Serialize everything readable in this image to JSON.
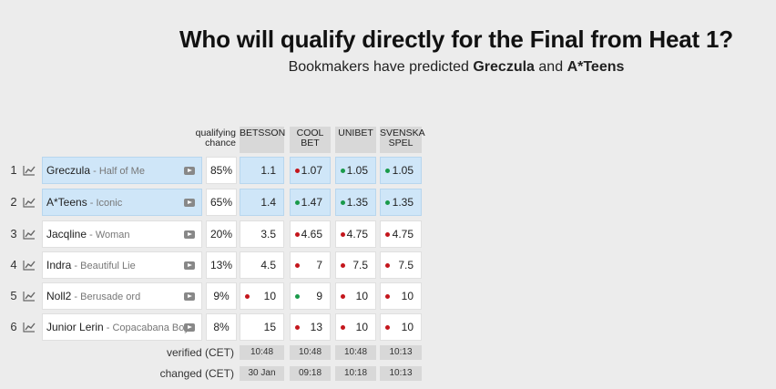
{
  "header": {
    "title": "Who will qualify directly for the Final from Heat 1?",
    "subtitle_prefix": "Bookmakers have predicted",
    "subtitle_name1": "Greczula",
    "subtitle_and": "and",
    "subtitle_name2": "A*Teens"
  },
  "columns": {
    "qualifying_line1": "qualifying",
    "qualifying_line2": "chance",
    "bookmakers": [
      {
        "line1": "BETSSON",
        "line2": ""
      },
      {
        "line1": "COOL",
        "line2": "BET"
      },
      {
        "line1": "UNIBET",
        "line2": ""
      },
      {
        "line1": "SVENSKA",
        "line2": "SPEL"
      }
    ]
  },
  "rows": [
    {
      "rank": "1",
      "artist": "Greczula",
      "song": "Half of Me",
      "chance": "85%",
      "highlight": true,
      "odds": [
        {
          "v": "1.1",
          "dot": ""
        },
        {
          "v": "1.07",
          "dot": "red"
        },
        {
          "v": "1.05",
          "dot": "green"
        },
        {
          "v": "1.05",
          "dot": "green"
        }
      ]
    },
    {
      "rank": "2",
      "artist": "A*Teens",
      "song": "Iconic",
      "chance": "65%",
      "highlight": true,
      "odds": [
        {
          "v": "1.4",
          "dot": ""
        },
        {
          "v": "1.47",
          "dot": "green"
        },
        {
          "v": "1.35",
          "dot": "green"
        },
        {
          "v": "1.35",
          "dot": "green"
        }
      ]
    },
    {
      "rank": "3",
      "artist": "Jacqline",
      "song": "Woman",
      "chance": "20%",
      "highlight": false,
      "odds": [
        {
          "v": "3.5",
          "dot": ""
        },
        {
          "v": "4.65",
          "dot": "red"
        },
        {
          "v": "4.75",
          "dot": "red"
        },
        {
          "v": "4.75",
          "dot": "red"
        }
      ]
    },
    {
      "rank": "4",
      "artist": "Indra",
      "song": "Beautiful Lie",
      "chance": "13%",
      "highlight": false,
      "odds": [
        {
          "v": "4.5",
          "dot": ""
        },
        {
          "v": "7",
          "dot": "red"
        },
        {
          "v": "7.5",
          "dot": "red"
        },
        {
          "v": "7.5",
          "dot": "red"
        }
      ]
    },
    {
      "rank": "5",
      "artist": "Noll2",
      "song": "Berusade ord",
      "chance": "9%",
      "highlight": false,
      "odds": [
        {
          "v": "10",
          "dot": "red"
        },
        {
          "v": "9",
          "dot": "green"
        },
        {
          "v": "10",
          "dot": "red"
        },
        {
          "v": "10",
          "dot": "red"
        }
      ]
    },
    {
      "rank": "6",
      "artist": "Junior Lerin",
      "song": "Copacabana Boy",
      "chance": "8%",
      "highlight": false,
      "odds": [
        {
          "v": "15",
          "dot": ""
        },
        {
          "v": "13",
          "dot": "red"
        },
        {
          "v": "10",
          "dot": "red"
        },
        {
          "v": "10",
          "dot": "red"
        }
      ]
    }
  ],
  "footer": {
    "verified_label": "verified (CET)",
    "verified": [
      "10:48",
      "10:48",
      "10:48",
      "10:13"
    ],
    "changed_label": "changed (CET)",
    "changed": [
      "30 Jan",
      "09:18",
      "10:18",
      "10:13"
    ]
  },
  "colors": {
    "red_dot": "#c4161c",
    "green_dot": "#1a9a4a",
    "highlight": "#cfe6f8"
  },
  "icons": {
    "trend": "trend-chart-icon",
    "play": "video-play-icon"
  }
}
